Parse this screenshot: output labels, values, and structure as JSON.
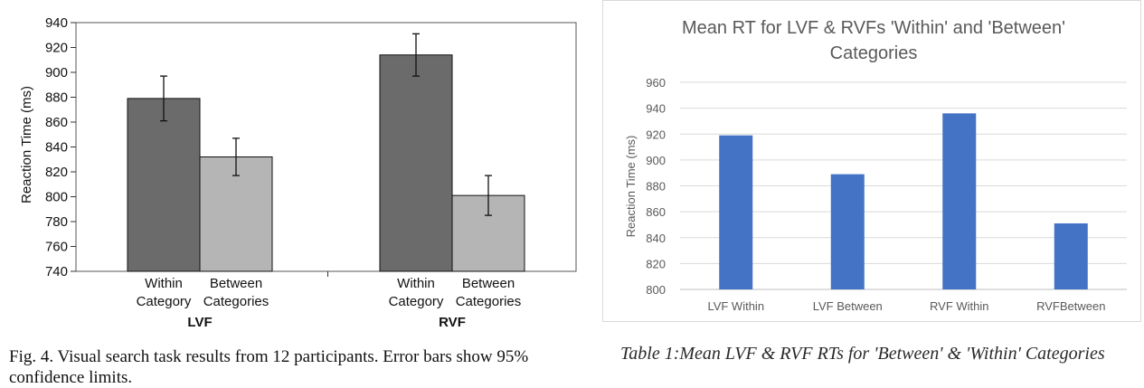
{
  "left_figure": {
    "caption": "Fig. 4. Visual search task results from 12 participants. Error bars show 95% confidence limits."
  },
  "right_figure": {
    "caption": "Table 1:Mean LVF & RVF RTs for 'Between' & 'Within' Categories"
  },
  "chart_data": [
    {
      "type": "bar",
      "title": "",
      "ylabel": "Reaction Time (ms)",
      "ylim": [
        740,
        940
      ],
      "yticks": [
        740,
        760,
        780,
        800,
        820,
        840,
        860,
        880,
        900,
        920,
        940
      ],
      "groups": [
        "LVF",
        "RVF"
      ],
      "categories": [
        [
          "Within",
          "Category"
        ],
        [
          "Between",
          "Categories"
        ]
      ],
      "series": [
        {
          "values": [
            879,
            914
          ],
          "error": [
            18,
            17
          ],
          "color": "#6b6b6b"
        },
        {
          "values": [
            832,
            801
          ],
          "error": [
            15,
            16
          ],
          "color": "#b5b5b5"
        }
      ],
      "grid": false
    },
    {
      "type": "bar",
      "title": "Mean RT for LVF & RVFs 'Within' and 'Between' Categories",
      "title_lines": [
        "Mean RT for LVF & RVFs 'Within' and 'Between'",
        "Categories"
      ],
      "xlabel": "",
      "ylabel": "Reaction Time (ms)",
      "ylim": [
        800,
        960
      ],
      "yticks": [
        800,
        820,
        840,
        860,
        880,
        900,
        920,
        940,
        960
      ],
      "categories": [
        "LVF Within",
        "LVF Between",
        "RVF Within",
        "RVFBetween"
      ],
      "values": [
        919,
        889,
        936,
        851
      ],
      "color": "#4472c4",
      "grid": true
    }
  ]
}
